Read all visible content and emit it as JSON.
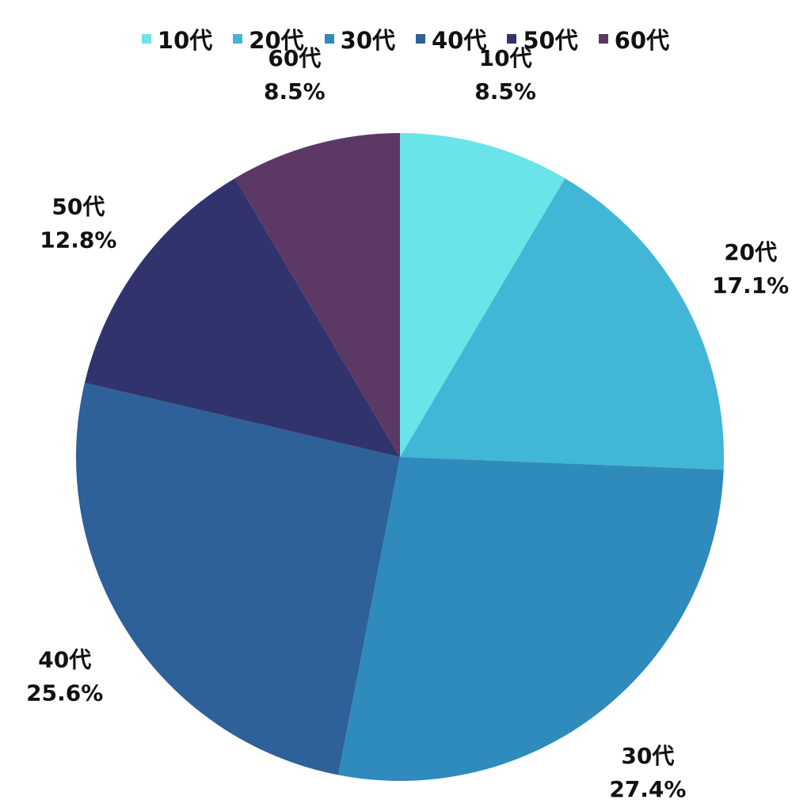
{
  "chart_data": {
    "type": "pie",
    "categories": [
      "10代",
      "20代",
      "30代",
      "40代",
      "50代",
      "60代"
    ],
    "values": [
      8.5,
      17.1,
      27.4,
      25.6,
      12.8,
      8.5
    ],
    "value_labels": [
      "8.5%",
      "17.1%",
      "27.4%",
      "25.6%",
      "12.8%",
      "8.5%"
    ],
    "colors": [
      "#6ae4e8",
      "#42b6d6",
      "#2e8bbb",
      "#2e6099",
      "#31346c",
      "#5c3864"
    ],
    "start_angle": "12 o'clock",
    "direction": "clockwise",
    "legend_placement": "top-center",
    "data_labels": "outside"
  }
}
